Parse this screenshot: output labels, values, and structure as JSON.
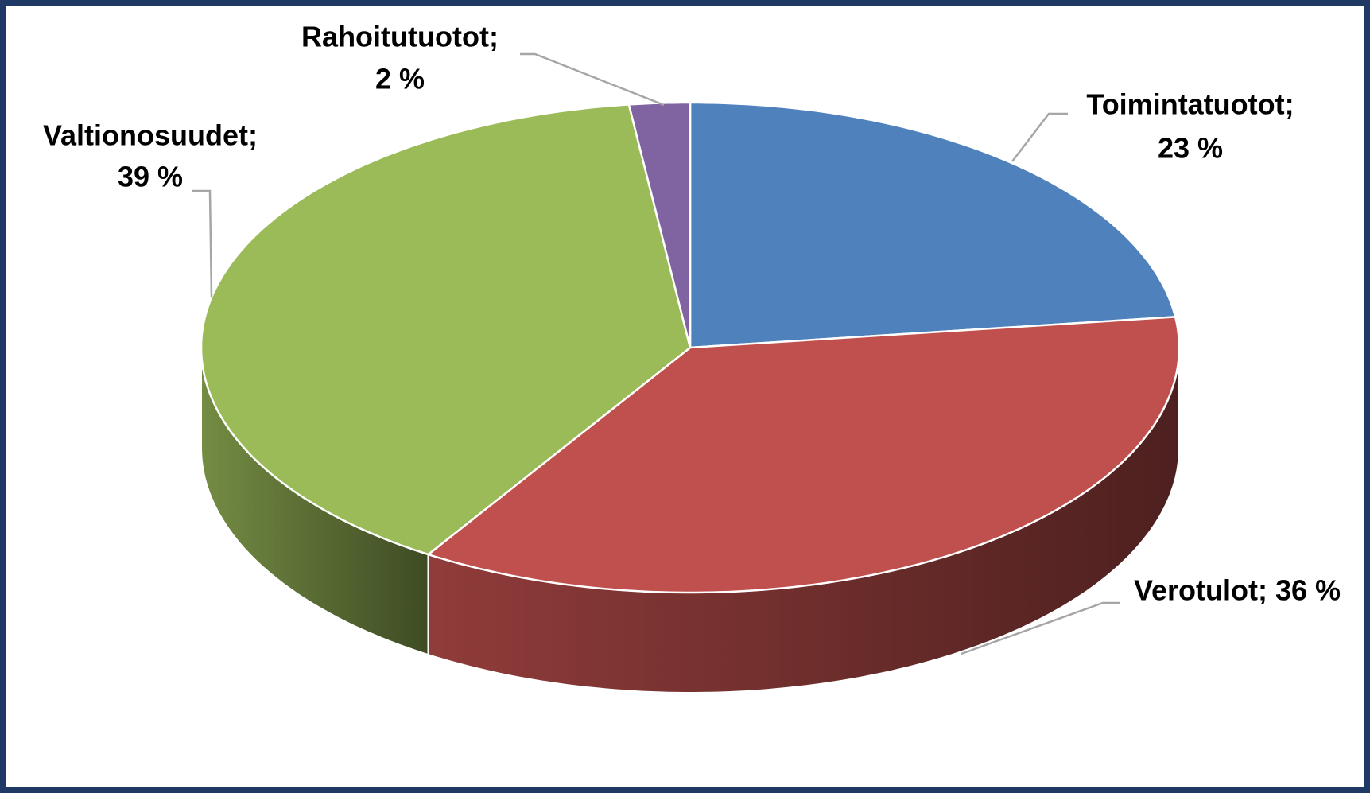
{
  "chart_data": {
    "type": "pie3d",
    "categories": [
      "Toimintatuotot;",
      "Verotulot;",
      "Valtionosuudet;",
      "Rahoitutuotot;"
    ],
    "values": [
      23,
      36,
      39,
      2
    ],
    "value_labels": [
      "23 %",
      "36 %",
      "39 %",
      "2 %"
    ],
    "colors": [
      "#4f81bd",
      "#c0504d",
      "#9bbb59",
      "#8064a2"
    ]
  }
}
